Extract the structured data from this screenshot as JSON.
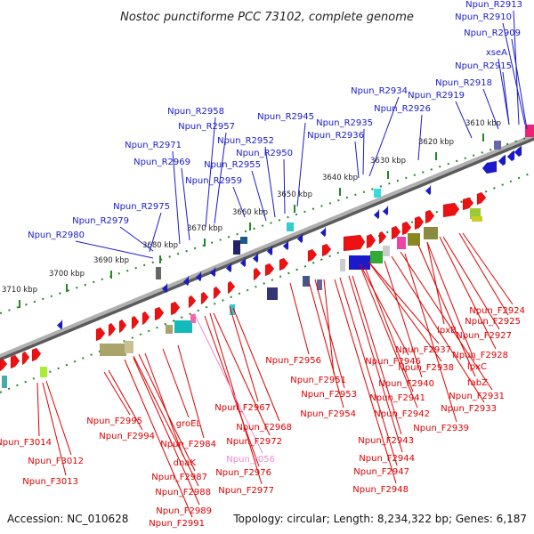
{
  "title": "Nostoc punctiforme PCC 73102, complete genome",
  "footer": {
    "accession": "Accession: NC_010628",
    "stats": "Topology: circular; Length: 8,234,322 bp; Genes: 6,187"
  },
  "colors": {
    "reverse_label": "#1a1acc",
    "forward_label": "#dd0000",
    "rna_label": "#ee88cc",
    "backbone": "#888888",
    "tick": "#228822"
  },
  "ticks": [
    "3610 kbp",
    "3620 kbp",
    "3630 kbp",
    "3640 kbp",
    "3650 kbp",
    "3660 kbp",
    "3670 kbp",
    "3680 kbp",
    "3690 kbp",
    "3700 kbp",
    "3710 kbp"
  ],
  "reverse_labels": [
    "Npun_R2913",
    "Npun_R2910",
    "Npun_R2909",
    "xseA",
    "Npun_R2915",
    "Npun_R2918",
    "Npun_R2934",
    "Npun_R2919",
    "Npun_R2926",
    "Npun_R2935",
    "Npun_R2936",
    "Npun_R2945",
    "Npun_R2958",
    "Npun_R2957",
    "Npun_R2952",
    "Npun_R2950",
    "Npun_R2955",
    "Npun_R2971",
    "Npun_R2969",
    "Npun_R2959",
    "Npun_R2975",
    "Npun_R2979",
    "Npun_R2980"
  ],
  "forward_labels": [
    "Npun_F2924",
    "Npun_F2925",
    "lpxB",
    "Npun_F2927",
    "Npun_F2928",
    "lpxC",
    "Npun_F2937",
    "Npun_F2938",
    "fabZ",
    "Npun_F2946",
    "Npun_F2931",
    "Npun_F2956",
    "Npun_F2951",
    "Npun_F2940",
    "Npun_F2941",
    "Npun_F2953",
    "Npun_F2933",
    "Npun_F2942",
    "Npun_F2954",
    "Npun_F2939",
    "Npun_F2967",
    "Npun_F2943",
    "Npun_F2995",
    "Npun_F2968",
    "groEL",
    "Npun_F2994",
    "Npun_F2984",
    "Npun_F2972",
    "Npun_F3014",
    "Npun_F2944",
    "Npun_F3012",
    "dnaK",
    "Npun_F2976",
    "Npun_F2947",
    "Npun_F2987",
    "Npun_F3013",
    "Npun_F2977",
    "Npun_F2948",
    "Npun_F2988",
    "Npun_F2989",
    "Npun_F2991"
  ],
  "rna_labels": [
    "Npun_r056"
  ]
}
